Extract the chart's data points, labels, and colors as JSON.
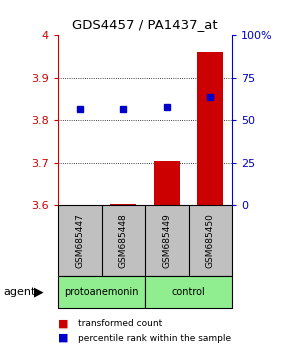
{
  "title": "GDS4457 / PA1437_at",
  "samples": [
    "GSM685447",
    "GSM685448",
    "GSM685449",
    "GSM685450"
  ],
  "groups": [
    "protoanemonin",
    "protoanemonin",
    "control",
    "control"
  ],
  "bar_values": [
    3.601,
    3.603,
    3.705,
    3.96
  ],
  "blue_values": [
    3.826,
    3.827,
    3.831,
    3.855
  ],
  "ylim": [
    3.6,
    4.0
  ],
  "yticks_left": [
    3.6,
    3.7,
    3.8,
    3.9,
    4.0
  ],
  "yticks_right": [
    0,
    25,
    50,
    75,
    100
  ],
  "bar_color": "#CC0000",
  "blue_color": "#0000CC",
  "bar_width": 0.6,
  "left_tick_color": "#CC0000",
  "right_tick_color": "#0000CC",
  "sample_box_color": "#C0C0C0",
  "group_color": "#90EE90",
  "figsize": [
    2.9,
    3.54
  ],
  "dpi": 100
}
